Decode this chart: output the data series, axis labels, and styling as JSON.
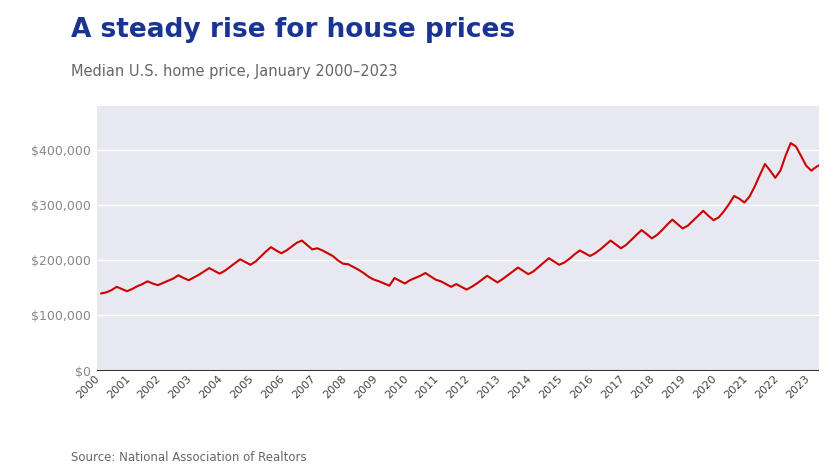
{
  "title": "A steady rise for house prices",
  "subtitle": "Median U.S. home price, January 2000–2023",
  "source": "Source: National Association of Realtors",
  "title_color": "#1a3494",
  "subtitle_color": "#666666",
  "line_color": "#cc0000",
  "background_color": "#ffffff",
  "plot_bg_color": "#e8e8f0",
  "ylim": [
    0,
    480000
  ],
  "yticks": [
    0,
    100000,
    200000,
    300000,
    400000
  ],
  "years": [
    2000,
    2001,
    2002,
    2003,
    2004,
    2005,
    2006,
    2007,
    2008,
    2009,
    2010,
    2011,
    2012,
    2013,
    2014,
    2015,
    2016,
    2017,
    2018,
    2019,
    2020,
    2021,
    2022,
    2023
  ],
  "monthly_prices": [
    140000,
    142000,
    146000,
    152000,
    148000,
    144000,
    148000,
    153000,
    157000,
    162000,
    158000,
    155000,
    159000,
    163000,
    167000,
    173000,
    168000,
    164000,
    169000,
    174000,
    180000,
    186000,
    181000,
    176000,
    181000,
    188000,
    195000,
    202000,
    197000,
    192000,
    198000,
    207000,
    216000,
    224000,
    218000,
    213000,
    218000,
    225000,
    232000,
    236000,
    228000,
    220000,
    222000,
    218000,
    213000,
    208000,
    200000,
    194000,
    193000,
    188000,
    183000,
    177000,
    170000,
    165000,
    162000,
    158000,
    154000,
    168000,
    163000,
    158000,
    164000,
    168000,
    172000,
    177000,
    171000,
    165000,
    162000,
    157000,
    152000,
    157000,
    152000,
    147000,
    152000,
    158000,
    165000,
    172000,
    166000,
    160000,
    166000,
    173000,
    180000,
    187000,
    181000,
    175000,
    180000,
    188000,
    196000,
    204000,
    198000,
    192000,
    196000,
    203000,
    211000,
    218000,
    213000,
    208000,
    213000,
    220000,
    228000,
    236000,
    229000,
    222000,
    228000,
    237000,
    246000,
    255000,
    248000,
    240000,
    246000,
    255000,
    265000,
    274000,
    266000,
    258000,
    263000,
    272000,
    281000,
    290000,
    281000,
    273000,
    278000,
    289000,
    302000,
    317000,
    312000,
    305000,
    316000,
    334000,
    355000,
    375000,
    363000,
    350000,
    363000,
    390000,
    413000,
    407000,
    390000,
    372000,
    363000,
    370000,
    375000,
    371000,
    367000,
    363000
  ],
  "line_width": 1.5,
  "grid_color": "#ffffff",
  "axis_color": "#444444"
}
